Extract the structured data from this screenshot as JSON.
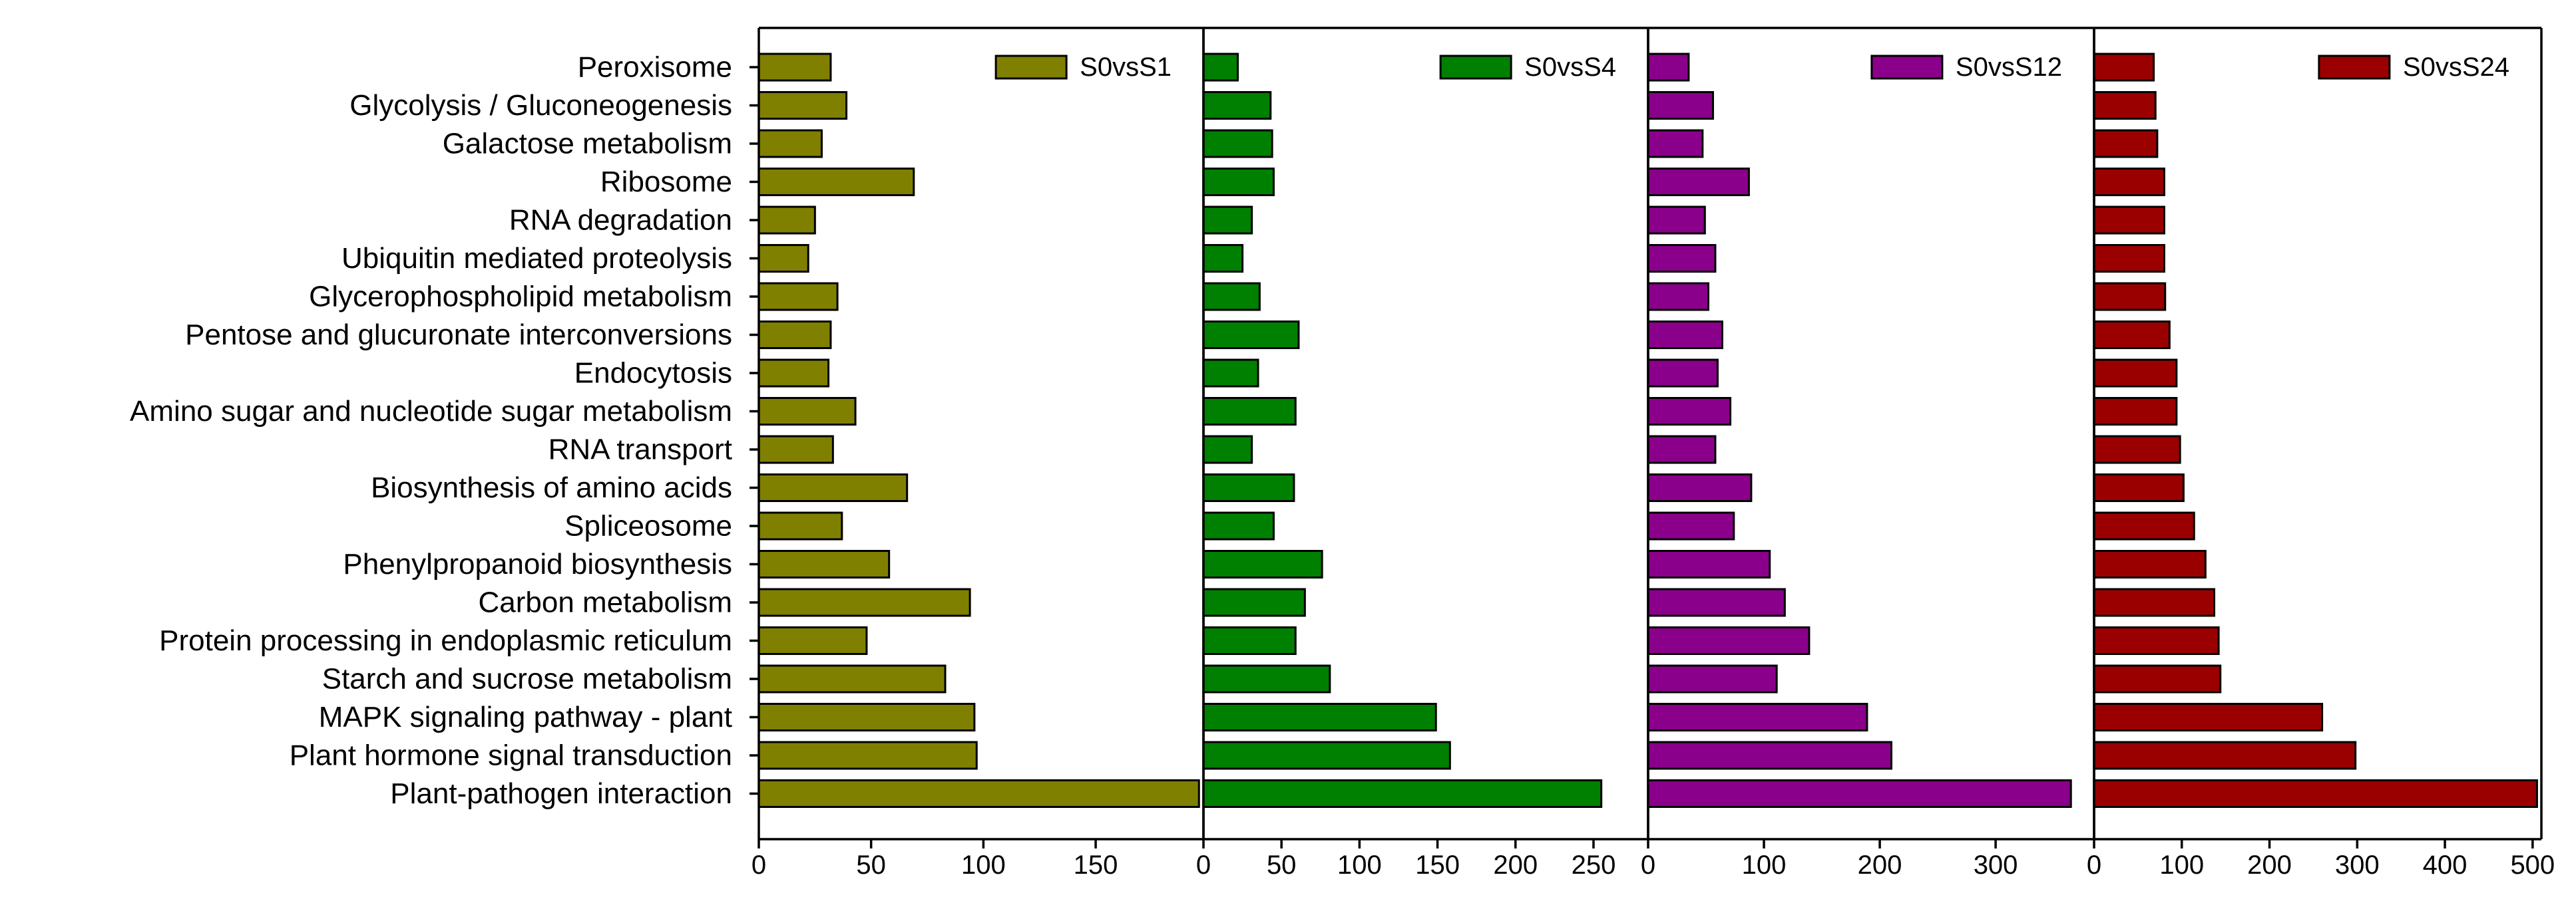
{
  "chart_data": {
    "type": "bar",
    "orientation": "horizontal",
    "categories": [
      "Peroxisome",
      "Glycolysis / Gluconeogenesis",
      "Galactose metabolism",
      "Ribosome",
      "RNA degradation",
      "Ubiquitin mediated proteolysis",
      "Glycerophospholipid metabolism",
      "Pentose and glucuronate interconversions",
      "Endocytosis",
      "Amino sugar and nucleotide sugar metabolism",
      "RNA transport",
      "Biosynthesis of amino acids",
      "Spliceosome",
      "Phenylpropanoid biosynthesis",
      "Carbon metabolism",
      "Protein processing in endoplasmic reticulum",
      "Starch and sucrose metabolism",
      "MAPK signaling pathway - plant",
      "Plant hormone signal transduction",
      "Plant-pathogen interaction"
    ],
    "panels": [
      {
        "name": "S0vsS1",
        "color": "#808000",
        "xlim": [
          0,
          198
        ],
        "xticks": [
          0,
          50,
          100,
          150
        ],
        "values": [
          32,
          39,
          28,
          69,
          25,
          22,
          35,
          32,
          31,
          43,
          33,
          66,
          37,
          58,
          94,
          48,
          83,
          96,
          97,
          196
        ]
      },
      {
        "name": "S0vsS4",
        "color": "#008000",
        "xlim": [
          0,
          285
        ],
        "xticks": [
          0,
          50,
          100,
          150,
          200,
          250
        ],
        "values": [
          22,
          43,
          44,
          45,
          31,
          25,
          36,
          61,
          35,
          59,
          31,
          58,
          45,
          76,
          65,
          59,
          81,
          149,
          158,
          255
        ]
      },
      {
        "name": "S0vsS12",
        "color": "#8B008B",
        "xlim": [
          0,
          385
        ],
        "xticks": [
          0,
          100,
          200,
          300
        ],
        "values": [
          35,
          56,
          47,
          87,
          49,
          58,
          52,
          64,
          60,
          71,
          58,
          89,
          74,
          105,
          118,
          139,
          111,
          189,
          210,
          365
        ]
      },
      {
        "name": "S0vsS24",
        "color": "#9B0000",
        "xlim": [
          0,
          510
        ],
        "xticks": [
          0,
          100,
          200,
          300,
          400,
          500
        ],
        "values": [
          68,
          70,
          72,
          80,
          80,
          80,
          81,
          86,
          94,
          94,
          98,
          102,
          114,
          127,
          137,
          142,
          144,
          260,
          298,
          505
        ]
      }
    ],
    "grid": false,
    "legend_position": "top-right"
  }
}
